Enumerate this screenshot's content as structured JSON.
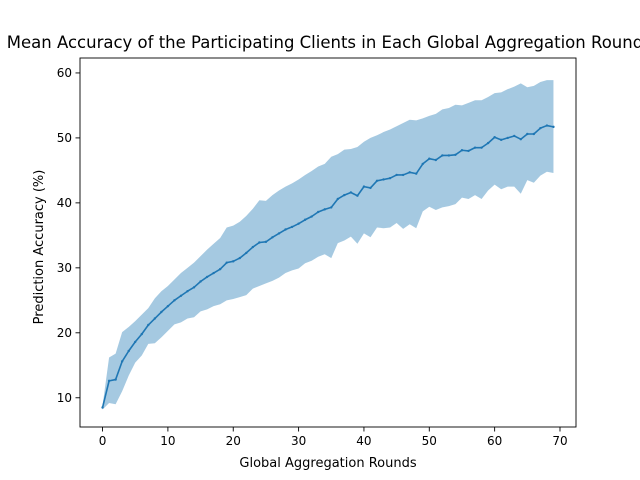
{
  "chart_data": {
    "type": "line",
    "title": "Mean Accuracy of the Participating Clients in Each Global Aggregation Round",
    "xlabel": "Global Aggregation Rounds",
    "ylabel": "Prediction Accuracy (%)",
    "xlim": [
      -3.45,
      72.45
    ],
    "ylim": [
      5.5,
      62.3
    ],
    "xticks": [
      0,
      10,
      20,
      30,
      40,
      50,
      60,
      70
    ],
    "yticks": [
      10,
      20,
      30,
      40,
      50,
      60
    ],
    "grid": false,
    "colors": {
      "line": "#1f77b4",
      "band": "#1f77b4"
    },
    "x": [
      0,
      1,
      2,
      3,
      4,
      5,
      6,
      7,
      8,
      9,
      10,
      11,
      12,
      13,
      14,
      15,
      16,
      17,
      18,
      19,
      20,
      21,
      22,
      23,
      24,
      25,
      26,
      27,
      28,
      29,
      30,
      31,
      32,
      33,
      34,
      35,
      36,
      37,
      38,
      39,
      40,
      41,
      42,
      43,
      44,
      45,
      46,
      47,
      48,
      49,
      50,
      51,
      52,
      53,
      54,
      55,
      56,
      57,
      58,
      59,
      60,
      61,
      62,
      63,
      64,
      65,
      66,
      67,
      68,
      69
    ],
    "series": [
      {
        "name": "mean",
        "values": [
          8.5,
          12.6,
          12.8,
          15.6,
          17.2,
          18.6,
          19.8,
          21.2,
          22.2,
          23.2,
          24.1,
          25.0,
          25.7,
          26.4,
          27.0,
          27.9,
          28.6,
          29.2,
          29.8,
          30.8,
          31.0,
          31.5,
          32.3,
          33.2,
          33.9,
          34.0,
          34.7,
          35.3,
          35.9,
          36.3,
          36.8,
          37.4,
          37.9,
          38.6,
          39.0,
          39.3,
          40.6,
          41.2,
          41.6,
          41.1,
          42.5,
          42.3,
          43.4,
          43.6,
          43.8,
          44.3,
          44.3,
          44.7,
          44.5,
          46.0,
          46.8,
          46.6,
          47.3,
          47.3,
          47.4,
          48.1,
          48.0,
          48.5,
          48.5,
          49.2,
          50.1,
          49.7,
          50.0,
          50.3,
          49.8,
          50.6,
          50.6,
          51.5,
          51.9,
          51.7
        ]
      },
      {
        "name": "upper",
        "values": [
          8.8,
          16.2,
          16.8,
          20.1,
          20.9,
          21.8,
          22.8,
          23.8,
          25.3,
          26.4,
          27.2,
          28.2,
          29.2,
          30.0,
          30.8,
          31.8,
          32.8,
          33.7,
          34.6,
          36.2,
          36.5,
          37.1,
          38.0,
          39.1,
          40.4,
          40.3,
          41.2,
          41.9,
          42.5,
          43.0,
          43.6,
          44.3,
          44.9,
          45.6,
          46.0,
          47.1,
          47.5,
          48.2,
          48.3,
          48.6,
          49.4,
          50.0,
          50.4,
          50.9,
          51.3,
          51.8,
          52.3,
          52.8,
          52.7,
          53.0,
          53.4,
          53.7,
          54.4,
          54.6,
          55.1,
          55.0,
          55.4,
          55.8,
          55.8,
          56.3,
          56.9,
          57.0,
          57.5,
          57.9,
          58.4,
          57.8,
          58.0,
          58.6,
          58.9,
          58.9
        ]
      },
      {
        "name": "lower",
        "values": [
          8.2,
          9.2,
          9.0,
          11.0,
          13.4,
          15.4,
          16.5,
          18.3,
          18.4,
          19.3,
          20.3,
          21.3,
          21.6,
          22.2,
          22.4,
          23.3,
          23.6,
          24.1,
          24.4,
          25.0,
          25.2,
          25.5,
          25.8,
          26.8,
          27.2,
          27.6,
          28.0,
          28.5,
          29.2,
          29.6,
          29.9,
          30.7,
          31.1,
          31.7,
          32.1,
          31.5,
          33.8,
          34.2,
          34.8,
          33.7,
          35.3,
          34.7,
          36.2,
          36.1,
          36.2,
          36.9,
          36.0,
          36.7,
          36.1,
          38.7,
          39.4,
          38.9,
          39.3,
          39.5,
          39.8,
          40.8,
          40.6,
          41.2,
          40.6,
          41.9,
          42.8,
          42.1,
          42.5,
          42.5,
          41.4,
          43.5,
          43.1,
          44.2,
          44.8,
          44.6
        ]
      }
    ]
  }
}
